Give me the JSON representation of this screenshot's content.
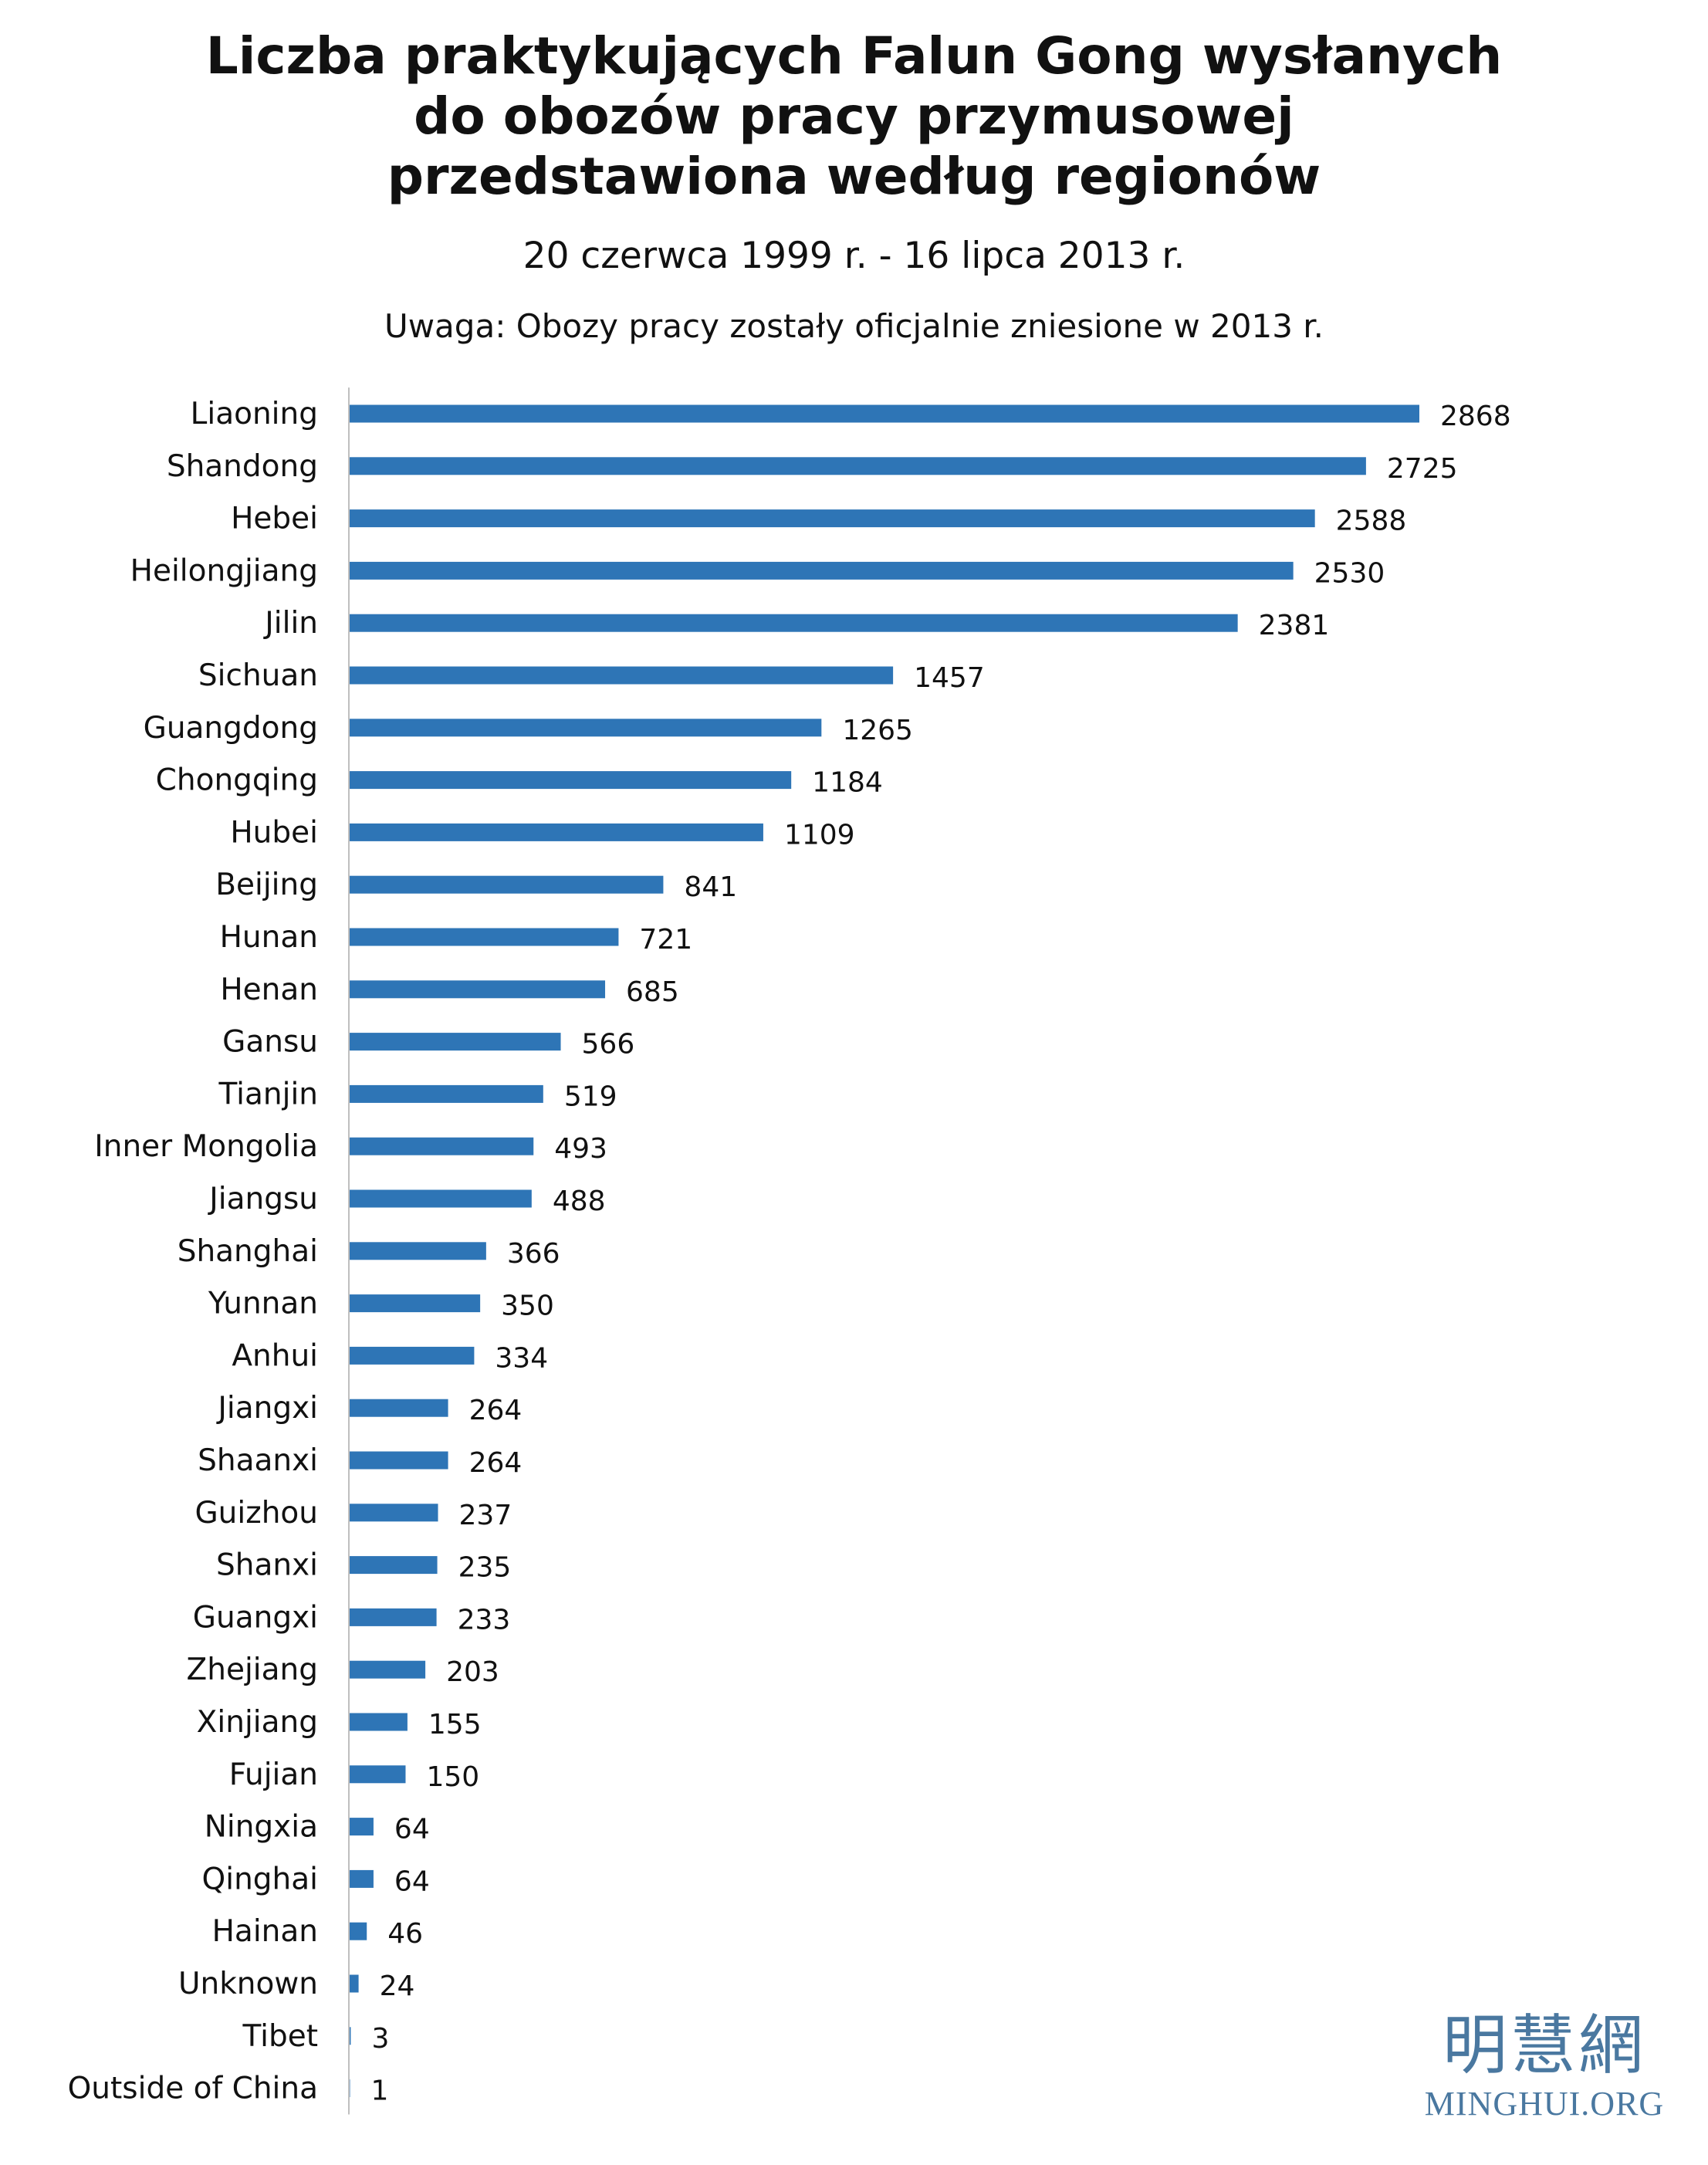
{
  "title_lines": [
    "Liczba praktykujących Falun Gong wysłanych",
    "do obozów pracy przymusowej",
    "przedstawiona według regionów"
  ],
  "subtitle": "20 czerwca 1999 r. - 16 lipca 2013 r.",
  "note": "Uwaga: Obozy pracy zostały oficjalnie zniesione w 2013 r.",
  "logo": {
    "chinese": "明慧網",
    "latin": "MINGHUI.ORG"
  },
  "colors": {
    "bar": "#2e75b6",
    "axis": "#bfbfbf",
    "logo": "#4a78a0"
  },
  "chart_data": {
    "type": "bar",
    "orientation": "horizontal",
    "categories": [
      "Liaoning",
      "Shandong",
      "Hebei",
      "Heilongjiang",
      "Jilin",
      "Sichuan",
      "Guangdong",
      "Chongqing",
      "Hubei",
      "Beijing",
      "Hunan",
      "Henan",
      "Gansu",
      "Tianjin",
      "Inner Mongolia",
      "Jiangsu",
      "Shanghai",
      "Yunnan",
      "Anhui",
      "Jiangxi",
      "Shaanxi",
      "Guizhou",
      "Shanxi",
      "Guangxi",
      "Zhejiang",
      "Xinjiang",
      "Fujian",
      "Ningxia",
      "Qinghai",
      "Hainan",
      "Unknown",
      "Tibet",
      "Outside of China"
    ],
    "values": [
      2868,
      2725,
      2588,
      2530,
      2381,
      1457,
      1265,
      1184,
      1109,
      841,
      721,
      685,
      566,
      519,
      493,
      488,
      366,
      350,
      334,
      264,
      264,
      237,
      235,
      233,
      203,
      155,
      150,
      64,
      64,
      46,
      24,
      3,
      1
    ],
    "data_labels": true,
    "grid": false,
    "legend": false
  }
}
